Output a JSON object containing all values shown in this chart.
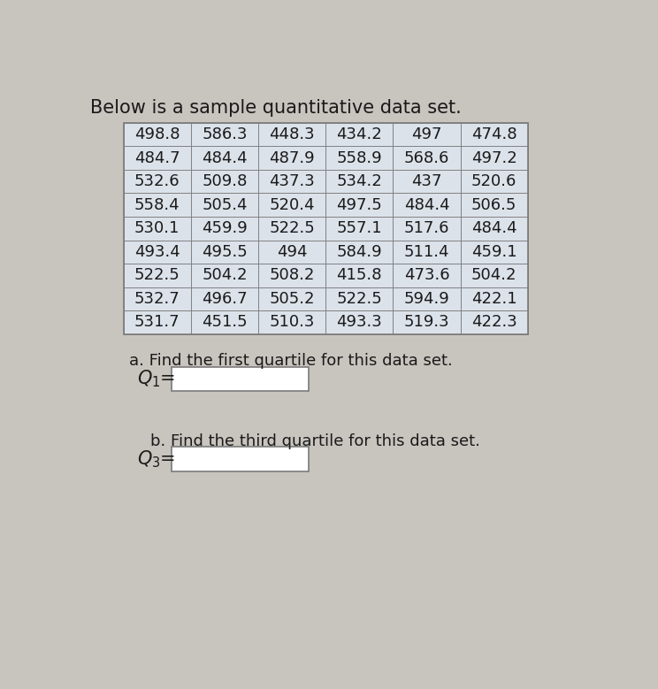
{
  "title": "Below is a sample quantitative data set.",
  "table_data": [
    [
      498.8,
      586.3,
      448.3,
      434.2,
      497,
      474.8
    ],
    [
      484.7,
      484.4,
      487.9,
      558.9,
      568.6,
      497.2
    ],
    [
      532.6,
      509.8,
      437.3,
      534.2,
      437,
      520.6
    ],
    [
      558.4,
      505.4,
      520.4,
      497.5,
      484.4,
      506.5
    ],
    [
      530.1,
      459.9,
      522.5,
      557.1,
      517.6,
      484.4
    ],
    [
      493.4,
      495.5,
      494,
      584.9,
      511.4,
      459.1
    ],
    [
      522.5,
      504.2,
      508.2,
      415.8,
      473.6,
      504.2
    ],
    [
      532.7,
      496.7,
      505.2,
      522.5,
      594.9,
      422.1
    ],
    [
      531.7,
      451.5,
      510.3,
      493.3,
      519.3,
      422.3
    ]
  ],
  "label_a": "a. Find the first quartile for this data set.",
  "label_b": "b. Find the third quartile for this data set.",
  "bg_color": "#c8c4be",
  "cell_bg_color": "#dce2ea",
  "table_border_color": "#7a7a7a",
  "text_color": "#1a1a1a",
  "font_size_title": 15,
  "font_size_table": 13,
  "font_size_label": 13,
  "font_size_q": 15
}
